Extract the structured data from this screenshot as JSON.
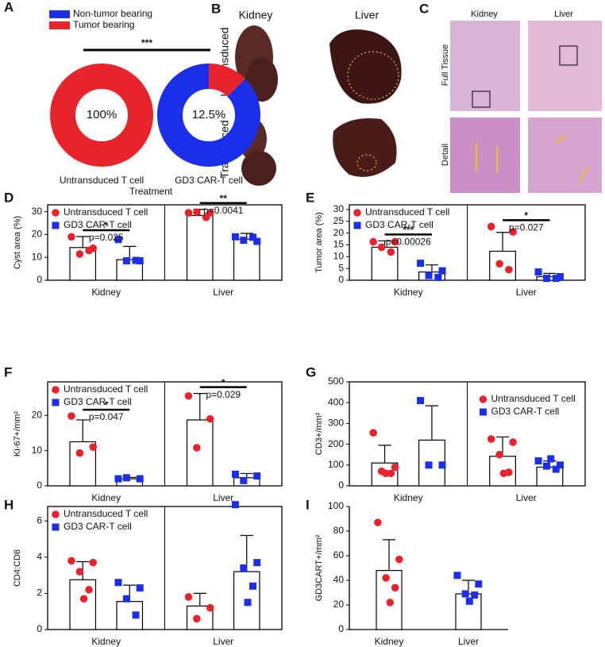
{
  "chart_data": [
    {
      "panel": "A",
      "type": "donut",
      "categories": [
        "Non-tumor bearing",
        "Tumor bearing"
      ],
      "colors": [
        "#1c2fe8",
        "#e8232b"
      ],
      "pies": [
        {
          "name": "Untransduced T cell",
          "values": [
            0,
            100
          ],
          "value_labels": [
            null,
            "100%"
          ]
        },
        {
          "name": "GD3 CAR-T cell",
          "values": [
            87.5,
            12.5
          ],
          "value_labels": [
            null,
            "12.5%"
          ]
        }
      ],
      "xlabel": "Treatment",
      "annotation": "***"
    },
    {
      "panel": "D",
      "type": "bar",
      "ylabel": "Cyst area (%)",
      "categories": [
        "Kidney",
        "Liver"
      ],
      "ylim": [
        0,
        33
      ],
      "yticks": [
        0,
        10,
        20,
        30
      ],
      "box": true,
      "legend": "upper left",
      "series": [
        {
          "name": "Untransduced T cell",
          "color": "#e8232b",
          "marker": "circle",
          "values": [
            14.3,
            28.3
          ],
          "errors": [
            4.8,
            2.7
          ],
          "points": [
            [
              19,
              14,
              11.5,
              13
            ],
            [
              29.5,
              29.5,
              29.8,
              27.5
            ]
          ]
        },
        {
          "name": "GD3 CAR-T cell",
          "color": "#1c2fe8",
          "marker": "square",
          "values": [
            9,
            18
          ],
          "errors": [
            5.8,
            2.5
          ],
          "points": [
            [
              17.8,
              8.5,
              8.5,
              8.7
            ],
            [
              19,
              17,
              17.5,
              18.8
            ]
          ]
        }
      ],
      "stars": [
        "*",
        "**"
      ],
      "p_labels": [
        "p=0.025",
        "p=0.0041"
      ]
    },
    {
      "panel": "E",
      "type": "bar",
      "ylabel": "Tumor area (%)",
      "categories": [
        "Kidney",
        "Liver"
      ],
      "ylim": [
        0,
        32
      ],
      "yticks": [
        0,
        5,
        10,
        15,
        20,
        25,
        30
      ],
      "box": true,
      "legend": "upper left",
      "series": [
        {
          "name": "Untransduced T cell",
          "color": "#e8232b",
          "marker": "circle",
          "values": [
            14,
            12.3
          ],
          "errors": [
            2.7,
            8
          ],
          "points": [
            [
              16.3,
              16.3,
              14,
              12
            ],
            [
              22.8,
              20.5,
              7,
              4.5
            ]
          ]
        },
        {
          "name": "GD3 CAR-T cell",
          "color": "#1c2fe8",
          "marker": "square",
          "values": [
            3.5,
            1.5
          ],
          "errors": [
            3,
            1.4
          ],
          "points": [
            [
              7.2,
              4,
              2,
              1.2
            ],
            [
              3.5,
              1.5,
              0.8,
              0.8
            ]
          ]
        }
      ],
      "stars": [
        "***",
        "*"
      ],
      "p_labels": [
        "p=0.00026",
        "p=0.027"
      ]
    },
    {
      "panel": "F",
      "type": "bar",
      "ylabel": "Ki-67+/mm²",
      "categories": [
        "Kidney",
        "Liver"
      ],
      "ylim": [
        0,
        29.5
      ],
      "yticks": [
        0,
        10,
        20
      ],
      "box": true,
      "legend": "upper left",
      "series": [
        {
          "name": "Untransduced T cell",
          "color": "#e8232b",
          "marker": "circle",
          "values": [
            12.5,
            18.7
          ],
          "errors": [
            6.2,
            7.5
          ],
          "points": [
            [
              19.8,
              11,
              9.3
            ],
            [
              25.5,
              19,
              10.8
            ]
          ]
        },
        {
          "name": "GD3 CAR-T cell",
          "color": "#1c2fe8",
          "marker": "square",
          "values": [
            2,
            2.3
          ],
          "errors": [
            0.4,
            1.2
          ],
          "points": [
            [
              2,
              2,
              2.3
            ],
            [
              3.3,
              2.8,
              1.5
            ]
          ]
        }
      ],
      "stars": [
        "*",
        "*"
      ],
      "p_labels": [
        "p=0.047",
        "p=0.029"
      ]
    },
    {
      "panel": "G",
      "type": "bar",
      "ylabel": "CD3+/mm²",
      "categories": [
        "Kidney",
        "Liver"
      ],
      "ylim": [
        0,
        500
      ],
      "yticks": [
        0,
        100,
        200,
        300,
        400,
        500
      ],
      "box": true,
      "legend": "upper right",
      "series": [
        {
          "name": "Untransduced T cell",
          "color": "#e8232b",
          "marker": "circle",
          "values": [
            110,
            142
          ],
          "errors": [
            85,
            93
          ],
          "points": [
            [
              255,
              90,
              70,
              60,
              60
            ],
            [
              225,
              210,
              150,
              65,
              60
            ]
          ]
        },
        {
          "name": "GD3 CAR-T cell",
          "color": "#1c2fe8",
          "marker": "square",
          "values": [
            220,
            90
          ],
          "errors": [
            165,
            30
          ],
          "points": [
            [
              410,
              100,
              100
            ],
            [
              120,
              100,
              95,
              80,
              130
            ]
          ]
        }
      ]
    },
    {
      "panel": "H",
      "type": "bar",
      "ylabel": "CD4:CD8",
      "categories": [
        "Kidney",
        "Liver"
      ],
      "ylim": [
        0,
        6.8
      ],
      "yticks": [
        0,
        2,
        4,
        6
      ],
      "box": true,
      "legend": "upper left",
      "series": [
        {
          "name": "Untransduced T cell",
          "color": "#e8232b",
          "marker": "circle",
          "values": [
            2.75,
            1.3
          ],
          "errors": [
            1,
            0.7
          ],
          "points": [
            [
              3.8,
              3.7,
              3.2,
              2.2,
              1.7
            ],
            [
              1.8,
              1.2,
              0.6
            ]
          ]
        },
        {
          "name": "GD3 CAR-T cell",
          "color": "#1c2fe8",
          "marker": "square",
          "values": [
            1.55,
            3.2
          ],
          "errors": [
            0.9,
            2
          ],
          "points": [
            [
              2.6,
              2.3,
              1.7,
              0.8
            ],
            [
              6.9,
              3.7,
              3.4,
              2.4,
              1.5
            ]
          ]
        }
      ]
    },
    {
      "panel": "I",
      "type": "bar",
      "ylabel": "GD3CART+/mm²",
      "categories": [
        "Kidney",
        "Liver"
      ],
      "ylim": [
        0,
        100
      ],
      "yticks": [
        0,
        20,
        40,
        60,
        80,
        100
      ],
      "box": false,
      "values": [
        48,
        29
      ],
      "errors": [
        25,
        11
      ],
      "points": [
        [
          87,
          57,
          42,
          34,
          22
        ],
        [
          44,
          37,
          29,
          28,
          23
        ]
      ],
      "colors": [
        "#e8232b",
        "#1c2fe8"
      ],
      "markers": [
        "circle",
        "square"
      ]
    }
  ],
  "photo_panels": [
    {
      "panel": "B",
      "columns": [
        "Kidney",
        "Liver"
      ],
      "rows": [
        "Untransduced",
        "Transduced"
      ]
    },
    {
      "panel": "C",
      "columns": [
        "Kidney",
        "Liver"
      ],
      "rows": [
        "Full Tissue",
        "Detail"
      ]
    }
  ]
}
